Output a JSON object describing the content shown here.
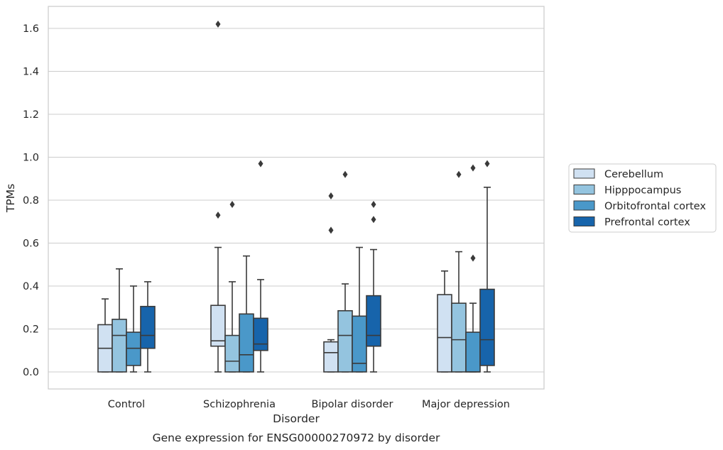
{
  "chart_data": {
    "type": "box",
    "title": "",
    "caption": "Gene expression for ENSG00000270972 by disorder",
    "xlabel": "Disorder",
    "ylabel": "TPMs",
    "ylim": [
      -0.08,
      1.7
    ],
    "yticks": [
      0.0,
      0.2,
      0.4,
      0.6,
      0.8,
      1.0,
      1.2,
      1.4,
      1.6
    ],
    "ytick_labels": [
      "0.0",
      "0.2",
      "0.4",
      "0.6",
      "0.8",
      "1.0",
      "1.2",
      "1.4",
      "1.6"
    ],
    "grid": "horizontal",
    "legend_position": "right, outside plot",
    "categories": [
      "Control",
      "Schizophrenia",
      "Bipolar disorder",
      "Major depression"
    ],
    "series": [
      {
        "name": "Cerebellum",
        "color": "#d0e1f2",
        "boxes": [
          {
            "whislo": 0.0,
            "q1": 0.0,
            "med": 0.11,
            "q3": 0.22,
            "whishi": 0.34,
            "fliers": []
          },
          {
            "whislo": 0.0,
            "q1": 0.12,
            "med": 0.145,
            "q3": 0.31,
            "whishi": 0.58,
            "fliers": [
              0.73,
              1.62
            ]
          },
          {
            "whislo": 0.0,
            "q1": 0.0,
            "med": 0.09,
            "q3": 0.14,
            "whishi": 0.15,
            "fliers": [
              0.66,
              0.82
            ]
          },
          {
            "whislo": 0.0,
            "q1": 0.0,
            "med": 0.16,
            "q3": 0.36,
            "whishi": 0.47,
            "fliers": []
          }
        ]
      },
      {
        "name": "Hipppocampus",
        "color": "#94c4df",
        "boxes": [
          {
            "whislo": 0.0,
            "q1": 0.0,
            "med": 0.17,
            "q3": 0.245,
            "whishi": 0.48,
            "fliers": []
          },
          {
            "whislo": 0.0,
            "q1": 0.0,
            "med": 0.05,
            "q3": 0.17,
            "whishi": 0.42,
            "fliers": [
              0.78
            ]
          },
          {
            "whislo": 0.0,
            "q1": 0.0,
            "med": 0.17,
            "q3": 0.285,
            "whishi": 0.41,
            "fliers": [
              0.92
            ]
          },
          {
            "whislo": 0.0,
            "q1": 0.0,
            "med": 0.15,
            "q3": 0.32,
            "whishi": 0.56,
            "fliers": [
              0.92
            ]
          }
        ]
      },
      {
        "name": "Orbitofrontal cortex",
        "color": "#4a98c9",
        "boxes": [
          {
            "whislo": 0.0,
            "q1": 0.03,
            "med": 0.11,
            "q3": 0.185,
            "whishi": 0.4,
            "fliers": []
          },
          {
            "whislo": 0.0,
            "q1": 0.0,
            "med": 0.08,
            "q3": 0.27,
            "whishi": 0.54,
            "fliers": []
          },
          {
            "whislo": 0.0,
            "q1": 0.0,
            "med": 0.04,
            "q3": 0.26,
            "whishi": 0.58,
            "fliers": []
          },
          {
            "whislo": 0.0,
            "q1": 0.0,
            "med": 0.0,
            "q3": 0.185,
            "whishi": 0.32,
            "fliers": [
              0.53,
              0.95
            ]
          }
        ]
      },
      {
        "name": "Prefrontal cortex",
        "color": "#1764ab",
        "boxes": [
          {
            "whislo": 0.0,
            "q1": 0.11,
            "med": 0.17,
            "q3": 0.305,
            "whishi": 0.42,
            "fliers": []
          },
          {
            "whislo": 0.0,
            "q1": 0.1,
            "med": 0.13,
            "q3": 0.25,
            "whishi": 0.43,
            "fliers": [
              0.97
            ]
          },
          {
            "whislo": 0.0,
            "q1": 0.12,
            "med": 0.17,
            "q3": 0.355,
            "whishi": 0.57,
            "fliers": [
              0.71,
              0.78
            ]
          },
          {
            "whislo": 0.0,
            "q1": 0.03,
            "med": 0.15,
            "q3": 0.385,
            "whishi": 0.86,
            "fliers": [
              0.97
            ]
          }
        ]
      }
    ]
  }
}
